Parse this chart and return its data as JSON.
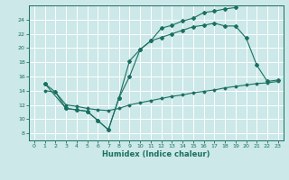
{
  "xlabel": "Humidex (Indice chaleur)",
  "bg_color": "#cce8e8",
  "line_color": "#1a7060",
  "grid_color": "#ffffff",
  "xlim": [
    -0.5,
    23.5
  ],
  "ylim": [
    7.0,
    26.0
  ],
  "xticks": [
    0,
    1,
    2,
    3,
    4,
    5,
    6,
    7,
    8,
    9,
    10,
    11,
    12,
    13,
    14,
    15,
    16,
    17,
    18,
    19,
    20,
    21,
    22,
    23
  ],
  "yticks": [
    8,
    10,
    12,
    14,
    16,
    18,
    20,
    22,
    24
  ],
  "line1_x": [
    1,
    2,
    3,
    4,
    5,
    6,
    7,
    8,
    9,
    10,
    11,
    12,
    13,
    14,
    15,
    16,
    17,
    18,
    19
  ],
  "line1_y": [
    15,
    13.8,
    11.5,
    11.3,
    11.1,
    9.8,
    8.5,
    13.0,
    16.0,
    19.8,
    21.0,
    22.8,
    23.2,
    23.8,
    24.2,
    25.0,
    25.2,
    25.5,
    25.7
  ],
  "line2_x": [
    1,
    3,
    4,
    5,
    6,
    7,
    8,
    9,
    10,
    11,
    12,
    13,
    14,
    15,
    16,
    17,
    18,
    19,
    20,
    21,
    22,
    23
  ],
  "line2_y": [
    15.0,
    11.5,
    11.3,
    11.1,
    9.8,
    8.5,
    13.0,
    18.2,
    19.8,
    21.0,
    21.5,
    22.0,
    22.5,
    23.0,
    23.2,
    23.5,
    23.1,
    23.1,
    21.4,
    17.6,
    15.3,
    15.5
  ],
  "line3_x": [
    1,
    2,
    3,
    4,
    5,
    6,
    7,
    8,
    9,
    10,
    11,
    12,
    13,
    14,
    15,
    16,
    17,
    18,
    19,
    20,
    21,
    22,
    23
  ],
  "line3_y": [
    14.0,
    13.8,
    12.0,
    11.8,
    11.5,
    11.3,
    11.2,
    11.5,
    12.0,
    12.3,
    12.6,
    12.9,
    13.2,
    13.4,
    13.7,
    13.9,
    14.1,
    14.4,
    14.6,
    14.8,
    15.0,
    15.1,
    15.3
  ]
}
